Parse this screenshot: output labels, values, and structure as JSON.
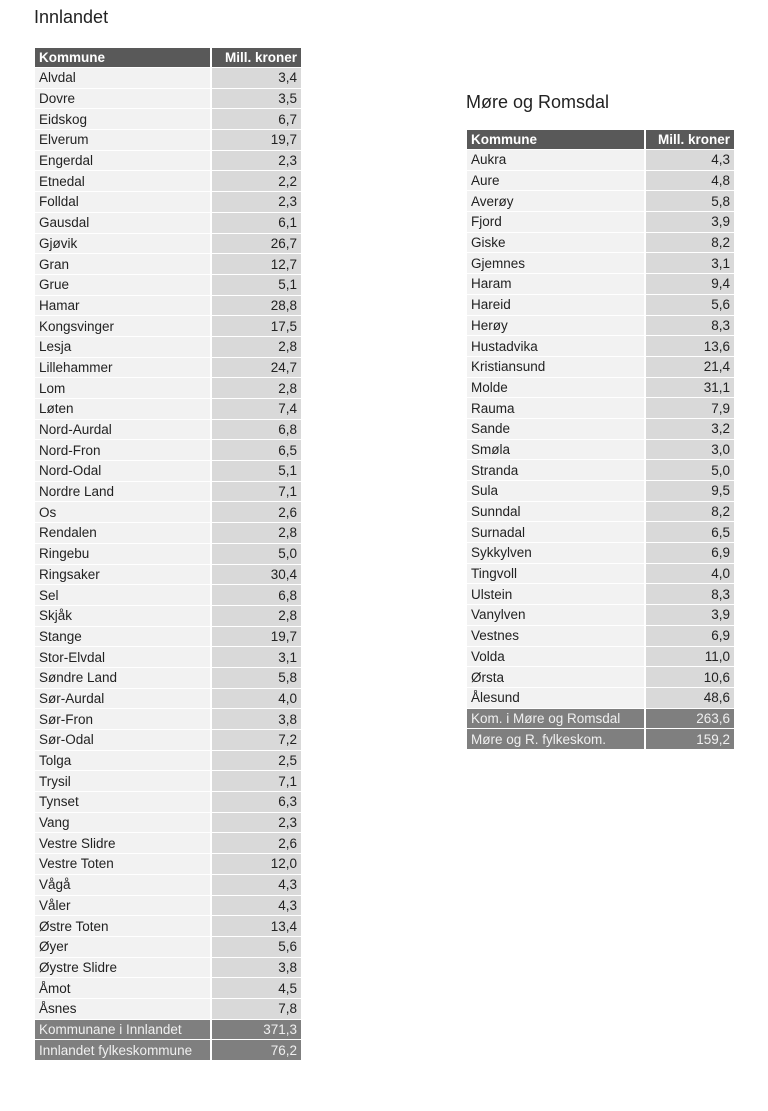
{
  "innlandet": {
    "title": "Innlandet",
    "headers": [
      "Kommune",
      "Mill. kroner"
    ],
    "rows": [
      [
        "Alvdal",
        "3,4"
      ],
      [
        "Dovre",
        "3,5"
      ],
      [
        "Eidskog",
        "6,7"
      ],
      [
        "Elverum",
        "19,7"
      ],
      [
        "Engerdal",
        "2,3"
      ],
      [
        "Etnedal",
        "2,2"
      ],
      [
        "Folldal",
        "2,3"
      ],
      [
        "Gausdal",
        "6,1"
      ],
      [
        "Gjøvik",
        "26,7"
      ],
      [
        "Gran",
        "12,7"
      ],
      [
        "Grue",
        "5,1"
      ],
      [
        "Hamar",
        "28,8"
      ],
      [
        "Kongsvinger",
        "17,5"
      ],
      [
        "Lesja",
        "2,8"
      ],
      [
        "Lillehammer",
        "24,7"
      ],
      [
        "Lom",
        "2,8"
      ],
      [
        "Løten",
        "7,4"
      ],
      [
        "Nord-Aurdal",
        "6,8"
      ],
      [
        "Nord-Fron",
        "6,5"
      ],
      [
        "Nord-Odal",
        "5,1"
      ],
      [
        "Nordre Land",
        "7,1"
      ],
      [
        "Os",
        "2,6"
      ],
      [
        "Rendalen",
        "2,8"
      ],
      [
        "Ringebu",
        "5,0"
      ],
      [
        "Ringsaker",
        "30,4"
      ],
      [
        "Sel",
        "6,8"
      ],
      [
        "Skjåk",
        "2,8"
      ],
      [
        "Stange",
        "19,7"
      ],
      [
        "Stor-Elvdal",
        "3,1"
      ],
      [
        "Søndre Land",
        "5,8"
      ],
      [
        "Sør-Aurdal",
        "4,0"
      ],
      [
        "Sør-Fron",
        "3,8"
      ],
      [
        "Sør-Odal",
        "7,2"
      ],
      [
        "Tolga",
        "2,5"
      ],
      [
        "Trysil",
        "7,1"
      ],
      [
        "Tynset",
        "6,3"
      ],
      [
        "Vang",
        "2,3"
      ],
      [
        "Vestre Slidre",
        "2,6"
      ],
      [
        "Vestre Toten",
        "12,0"
      ],
      [
        "Vågå",
        "4,3"
      ],
      [
        "Våler",
        "4,3"
      ],
      [
        "Østre Toten",
        "13,4"
      ],
      [
        "Øyer",
        "5,6"
      ],
      [
        "Øystre Slidre",
        "3,8"
      ],
      [
        "Åmot",
        "4,5"
      ],
      [
        "Åsnes",
        "7,8"
      ]
    ],
    "totals": [
      [
        "Kommunane i Innlandet",
        "371,3"
      ],
      [
        "Innlandet fylkeskommune",
        "76,2"
      ]
    ]
  },
  "more": {
    "title": "Møre og Romsdal",
    "headers": [
      "Kommune",
      "Mill. kroner"
    ],
    "rows": [
      [
        "Aukra",
        "4,3"
      ],
      [
        "Aure",
        "4,8"
      ],
      [
        "Averøy",
        "5,8"
      ],
      [
        "Fjord",
        "3,9"
      ],
      [
        "Giske",
        "8,2"
      ],
      [
        "Gjemnes",
        "3,1"
      ],
      [
        "Haram",
        "9,4"
      ],
      [
        "Hareid",
        "5,6"
      ],
      [
        "Herøy",
        "8,3"
      ],
      [
        "Hustadvika",
        "13,6"
      ],
      [
        "Kristiansund",
        "21,4"
      ],
      [
        "Molde",
        "31,1"
      ],
      [
        "Rauma",
        "7,9"
      ],
      [
        "Sande",
        "3,2"
      ],
      [
        "Smøla",
        "3,0"
      ],
      [
        "Stranda",
        "5,0"
      ],
      [
        "Sula",
        "9,5"
      ],
      [
        "Sunndal",
        "8,2"
      ],
      [
        "Surnadal",
        "6,5"
      ],
      [
        "Sykkylven",
        "6,9"
      ],
      [
        "Tingvoll",
        "4,0"
      ],
      [
        "Ulstein",
        "8,3"
      ],
      [
        "Vanylven",
        "3,9"
      ],
      [
        "Vestnes",
        "6,9"
      ],
      [
        "Volda",
        "11,0"
      ],
      [
        "Ørsta",
        "10,6"
      ],
      [
        "Ålesund",
        "48,6"
      ]
    ],
    "totals": [
      [
        "Kom. i Møre og Romsdal",
        "263,6"
      ],
      [
        "Møre og R. fylkeskom.",
        "159,2"
      ]
    ]
  }
}
